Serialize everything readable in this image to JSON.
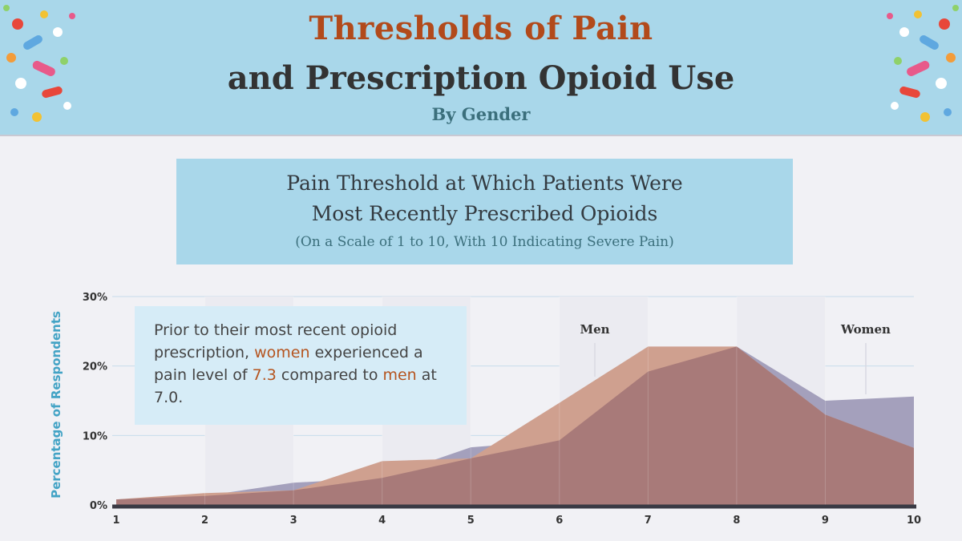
{
  "header": {
    "title_line1": "Thresholds of Pain",
    "title_line2": "and Prescription Opioid Use",
    "subtitle": "By Gender",
    "decoration": "pills-icon"
  },
  "chart_title": {
    "line1": "Pain Threshold at Which Patients Were",
    "line2": "Most Recently Prescribed Opioids",
    "line3": "(On a Scale of 1 to 10, With 10 Indicating Severe Pain)"
  },
  "note": {
    "part1": "Prior to their most recent opioid prescription, ",
    "women": "women",
    "part2": " experienced a pain level of ",
    "women_value": "7.3",
    "part3": " compared to ",
    "men": "men",
    "part4": " at ",
    "men_value": "7.0",
    "part5": "."
  },
  "colors": {
    "header_bg": "#a9d7ea",
    "title_orange": "#b24a1b",
    "men_area": "#cfa08f",
    "women_area": "#a4a0bc",
    "overlap_area": "#a87a79",
    "axis": "#3a3a44",
    "ylabel": "#43a3c5"
  },
  "chart_data": {
    "type": "area",
    "title": "Pain Threshold at Which Patients Were Most Recently Prescribed Opioids",
    "subtitle": "(On a Scale of 1 to 10, With 10 Indicating Severe Pain)",
    "xlabel": "",
    "ylabel": "Percentage of Respondents",
    "x": [
      1,
      2,
      3,
      4,
      5,
      6,
      7,
      8,
      9,
      10
    ],
    "x_tick_labels": [
      "1",
      "2",
      "3",
      "4",
      "5",
      "6",
      "7",
      "8",
      "9",
      "10"
    ],
    "y_ticks": [
      0,
      10,
      20,
      30
    ],
    "y_tick_labels": [
      "0%",
      "10%",
      "20%",
      "30%"
    ],
    "ylim": [
      0,
      30
    ],
    "grid": true,
    "series": [
      {
        "name": "Men",
        "values": [
          0.8,
          1.7,
          2.1,
          6.3,
          6.7,
          14.7,
          22.8,
          22.8,
          13.0,
          8.2
        ]
      },
      {
        "name": "Women",
        "values": [
          0.8,
          1.3,
          3.2,
          3.9,
          8.3,
          9.3,
          19.2,
          22.8,
          15.0,
          15.6
        ]
      }
    ]
  }
}
